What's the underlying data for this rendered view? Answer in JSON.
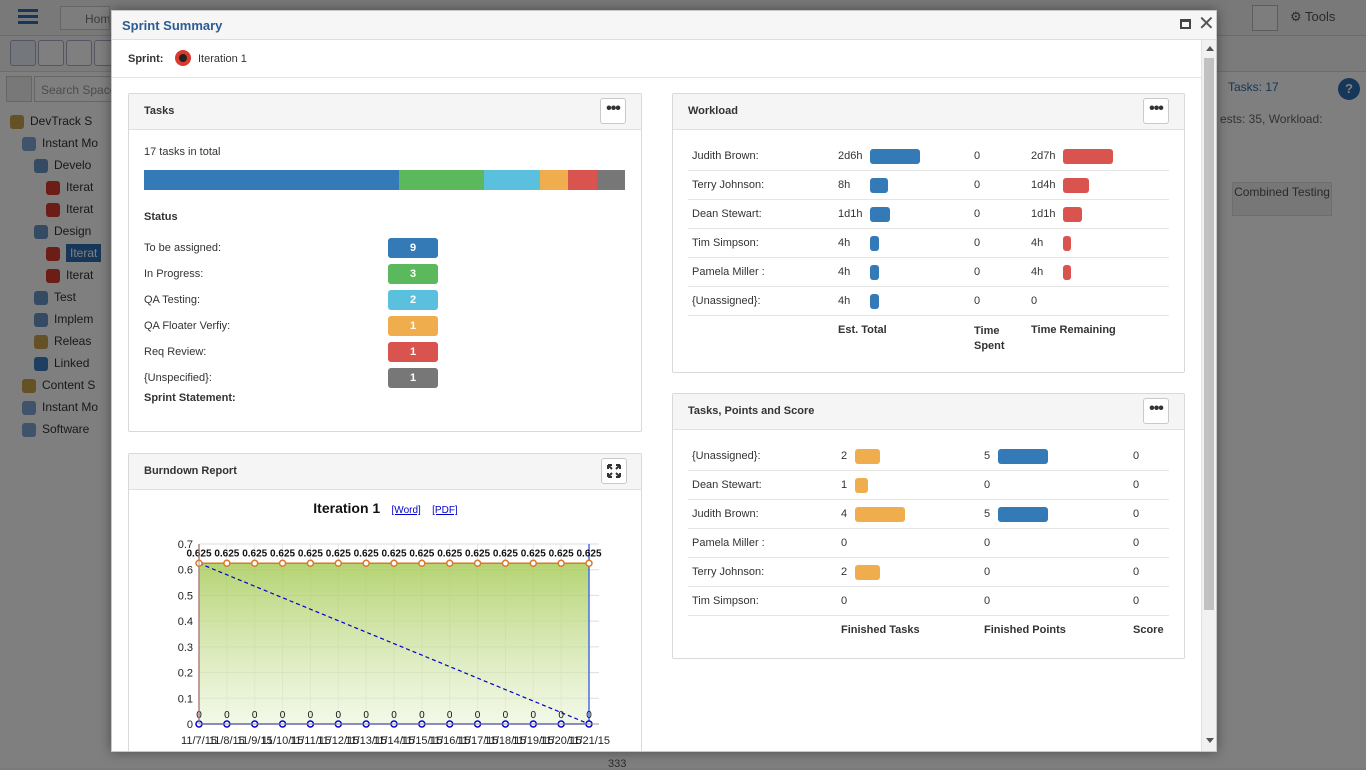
{
  "background": {
    "home_label": "Home",
    "tools_label": "Tools",
    "search_placeholder": "Search Spaces",
    "tasks_count": "Tasks: 17",
    "status_text": "ests: 35, Workload:",
    "combined_testing": "Combined Testing",
    "row_value": "333",
    "tree": [
      {
        "label": "DevTrack S",
        "indent": 0
      },
      {
        "label": "Instant Mo",
        "indent": 1
      },
      {
        "label": "Develo",
        "indent": 2
      },
      {
        "label": "Iterat",
        "indent": 3
      },
      {
        "label": "Iterat",
        "indent": 3
      },
      {
        "label": "Design",
        "indent": 2
      },
      {
        "label": "Iterat",
        "indent": 3,
        "selected": true
      },
      {
        "label": "Iterat",
        "indent": 3
      },
      {
        "label": "Test",
        "indent": 2
      },
      {
        "label": "Implem",
        "indent": 2
      },
      {
        "label": "Releas",
        "indent": 2
      },
      {
        "label": "Linked",
        "indent": 2
      },
      {
        "label": "Content S",
        "indent": 1
      },
      {
        "label": "Instant Mo",
        "indent": 1
      },
      {
        "label": "Software",
        "indent": 1
      }
    ]
  },
  "modal": {
    "title": "Sprint Summary",
    "sprint_label": "Sprint:",
    "sprint_name": "Iteration 1"
  },
  "tasks_panel": {
    "title": "Tasks",
    "total_text": "17 tasks in total",
    "status_title": "Status",
    "statement_label": "Sprint Statement:",
    "statuses": [
      {
        "name": "To be assigned:",
        "count": "9",
        "color": "#337ab7"
      },
      {
        "name": "In Progress:",
        "count": "3",
        "color": "#5cb85c"
      },
      {
        "name": "QA Testing:",
        "count": "2",
        "color": "#5bc0de"
      },
      {
        "name": "QA Floater Verfiy:",
        "count": "1",
        "color": "#f0ad4e"
      },
      {
        "name": "Req Review:",
        "count": "1",
        "color": "#d9534f"
      },
      {
        "name": "{Unspecified}:",
        "count": "1",
        "color": "#777777"
      }
    ]
  },
  "workload_panel": {
    "title": "Workload",
    "rows": [
      {
        "name": "Judith Brown:",
        "est": "2d6h",
        "est_frac": 1.0,
        "spent": "0",
        "remain": "2d7h",
        "remain_frac": 1.0
      },
      {
        "name": "Terry Johnson:",
        "est": "8h",
        "est_frac": 0.36,
        "spent": "0",
        "remain": "1d4h",
        "remain_frac": 0.52
      },
      {
        "name": "Dean Stewart:",
        "est": "1d1h",
        "est_frac": 0.4,
        "spent": "0",
        "remain": "1d1h",
        "remain_frac": 0.38
      },
      {
        "name": "Tim Simpson:",
        "est": "4h",
        "est_frac": 0.18,
        "spent": "0",
        "remain": "4h",
        "remain_frac": 0.16
      },
      {
        "name": "Pamela Miller :",
        "est": "4h",
        "est_frac": 0.18,
        "spent": "0",
        "remain": "4h",
        "remain_frac": 0.16
      },
      {
        "name": "{Unassigned}:",
        "est": "4h",
        "est_frac": 0.18,
        "spent": "0",
        "remain": "0",
        "remain_frac": 0
      }
    ],
    "footer": {
      "est_total": "Est. Total",
      "time_spent": "Time Spent",
      "time_remaining": "Time Remaining"
    }
  },
  "tps_panel": {
    "title": "Tasks, Points and Score",
    "rows": [
      {
        "name": "{Unassigned}:",
        "tasks": "2",
        "tasks_frac": 0.5,
        "points": "5",
        "points_frac": 1.0,
        "score": "0"
      },
      {
        "name": "Dean Stewart:",
        "tasks": "1",
        "tasks_frac": 0.25,
        "points": "0",
        "points_frac": 0,
        "score": "0"
      },
      {
        "name": "Judith Brown:",
        "tasks": "4",
        "tasks_frac": 1.0,
        "points": "5",
        "points_frac": 1.0,
        "score": "0"
      },
      {
        "name": "Pamela Miller :",
        "tasks": "0",
        "tasks_frac": 0,
        "points": "0",
        "points_frac": 0,
        "score": "0"
      },
      {
        "name": "Terry Johnson:",
        "tasks": "2",
        "tasks_frac": 0.5,
        "points": "0",
        "points_frac": 0,
        "score": "0"
      },
      {
        "name": "Tim Simpson:",
        "tasks": "0",
        "tasks_frac": 0,
        "points": "0",
        "points_frac": 0,
        "score": "0"
      }
    ],
    "footer": {
      "finished_tasks": "Finished Tasks",
      "finished_points": "Finished Points",
      "score": "Score"
    }
  },
  "burndown_panel": {
    "title": "Burndown Report",
    "chart_title": "Iteration 1",
    "word_link": "[Word]",
    "pdf_link": "[PDF]"
  },
  "chart_data": {
    "type": "area",
    "title": "Iteration 1",
    "ylim": [
      0,
      0.7
    ],
    "yticks": [
      "0",
      "0.1",
      "0.2",
      "0.3",
      "0.4",
      "0.5",
      "0.6",
      "0.7"
    ],
    "categories": [
      "11/7/15",
      "11/8/15",
      "11/9/15",
      "11/10/15",
      "11/11/15",
      "11/12/15",
      "11/13/15",
      "11/14/15",
      "11/15/15",
      "11/16/15",
      "11/17/15",
      "11/18/15",
      "11/19/15",
      "11/20/15",
      "11/21/15"
    ],
    "series": [
      {
        "values": [
          0.625,
          0.625,
          0.625,
          0.625,
          0.625,
          0.625,
          0.625,
          0.625,
          0.625,
          0.625,
          0.625,
          0.625,
          0.625,
          0.625,
          0.625
        ],
        "labels": [
          "0.625",
          "0.625",
          "0.625",
          "0.625",
          "0.625",
          "0.625",
          "0.625",
          "0.625",
          "0.625",
          "0.625",
          "0.625",
          "0.625",
          "0.625",
          "0.625",
          "0.625"
        ],
        "color": "#d9792b"
      },
      {
        "values": [
          0,
          0,
          0,
          0,
          0,
          0,
          0,
          0,
          0,
          0,
          0,
          0,
          0,
          0,
          0
        ],
        "labels": [
          "0",
          "0",
          "0",
          "0",
          "0",
          "0",
          "0",
          "0",
          "0",
          "0",
          "0",
          "0",
          "0",
          "0",
          "0"
        ],
        "color": "#0000cc"
      }
    ],
    "ideal_line": {
      "from": 0.625,
      "to": 0,
      "color": "#0000cc"
    },
    "grid": true
  }
}
